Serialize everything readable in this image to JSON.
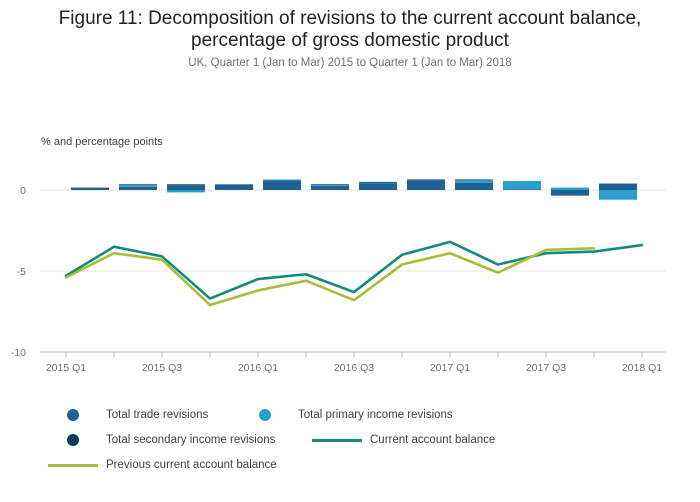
{
  "chart_data": {
    "type": "bar+line",
    "title": "Figure 11: Decomposition of revisions to the current account balance, percentage of gross domestic product",
    "title_lines": [
      "Figure 11: Decomposition of revisions to the current account balance,",
      "percentage of gross domestic product"
    ],
    "subtitle": "UK, Quarter 1 (Jan to Mar) 2015 to Quarter 1 (Jan to Mar) 2018",
    "ylabel": "% and percentage points",
    "ylim": [
      -10,
      2
    ],
    "yticks": [
      0,
      -5,
      -10
    ],
    "ytick_labels": [
      "0",
      "-5",
      "-10"
    ],
    "categories": [
      "2015 Q1",
      "2015 Q2",
      "2015 Q3",
      "2015 Q4",
      "2016 Q1",
      "2016 Q2",
      "2016 Q3",
      "2016 Q4",
      "2017 Q1",
      "2017 Q2",
      "2017 Q3",
      "2017 Q4",
      "2018 Q1"
    ],
    "xtick_labels": [
      "2015 Q1",
      "",
      "2015 Q3",
      "",
      "2016 Q1",
      "",
      "2016 Q3",
      "",
      "2017 Q1",
      "",
      "2017 Q3",
      "",
      "2018 Q1"
    ],
    "bar_series": [
      {
        "name": "Total trade revisions",
        "color": "#206095",
        "values": [
          0.15,
          0.2,
          0.3,
          0.35,
          0.6,
          0.25,
          0.4,
          0.6,
          0.45,
          0.05,
          -0.35,
          0.4,
          null
        ]
      },
      {
        "name": "Total primary income revisions",
        "color": "#27a0cc",
        "values": [
          0.0,
          0.1,
          -0.15,
          0.0,
          0.05,
          0.05,
          0.05,
          0.0,
          0.15,
          0.5,
          0.15,
          -0.6,
          null
        ]
      },
      {
        "name": "Total secondary income revisions",
        "color": "#003c57",
        "values": [
          0.0,
          0.05,
          0.05,
          0.0,
          0.0,
          0.05,
          0.05,
          0.05,
          0.05,
          0.0,
          0.0,
          0.0,
          null
        ]
      }
    ],
    "line_series": [
      {
        "name": "Current account balance",
        "color": "#118c7b",
        "values": [
          -5.3,
          -3.5,
          -4.1,
          -6.7,
          -5.5,
          -5.2,
          -6.3,
          -4.0,
          -3.2,
          -4.6,
          -3.9,
          -3.8,
          -3.4
        ]
      },
      {
        "name": "Previous current account balance",
        "color": "#a8bd3a",
        "values": [
          -5.4,
          -3.9,
          -4.3,
          -7.1,
          -6.2,
          -5.6,
          -6.8,
          -4.6,
          -3.9,
          -5.1,
          -3.7,
          -3.6,
          null
        ]
      }
    ],
    "legend": [
      {
        "name": "Total trade revisions",
        "color": "#206095",
        "marker": "dot"
      },
      {
        "name": "Total primary income revisions",
        "color": "#27a0cc",
        "marker": "dot"
      },
      {
        "name": "Total secondary income revisions",
        "color": "#003c57",
        "marker": "dot"
      },
      {
        "name": "Current account balance",
        "color": "#118c7b",
        "marker": "line"
      },
      {
        "name": "Previous current account balance",
        "color": "#a8bd3a",
        "marker": "line"
      }
    ],
    "legend_position": "bottom",
    "grid": true
  }
}
